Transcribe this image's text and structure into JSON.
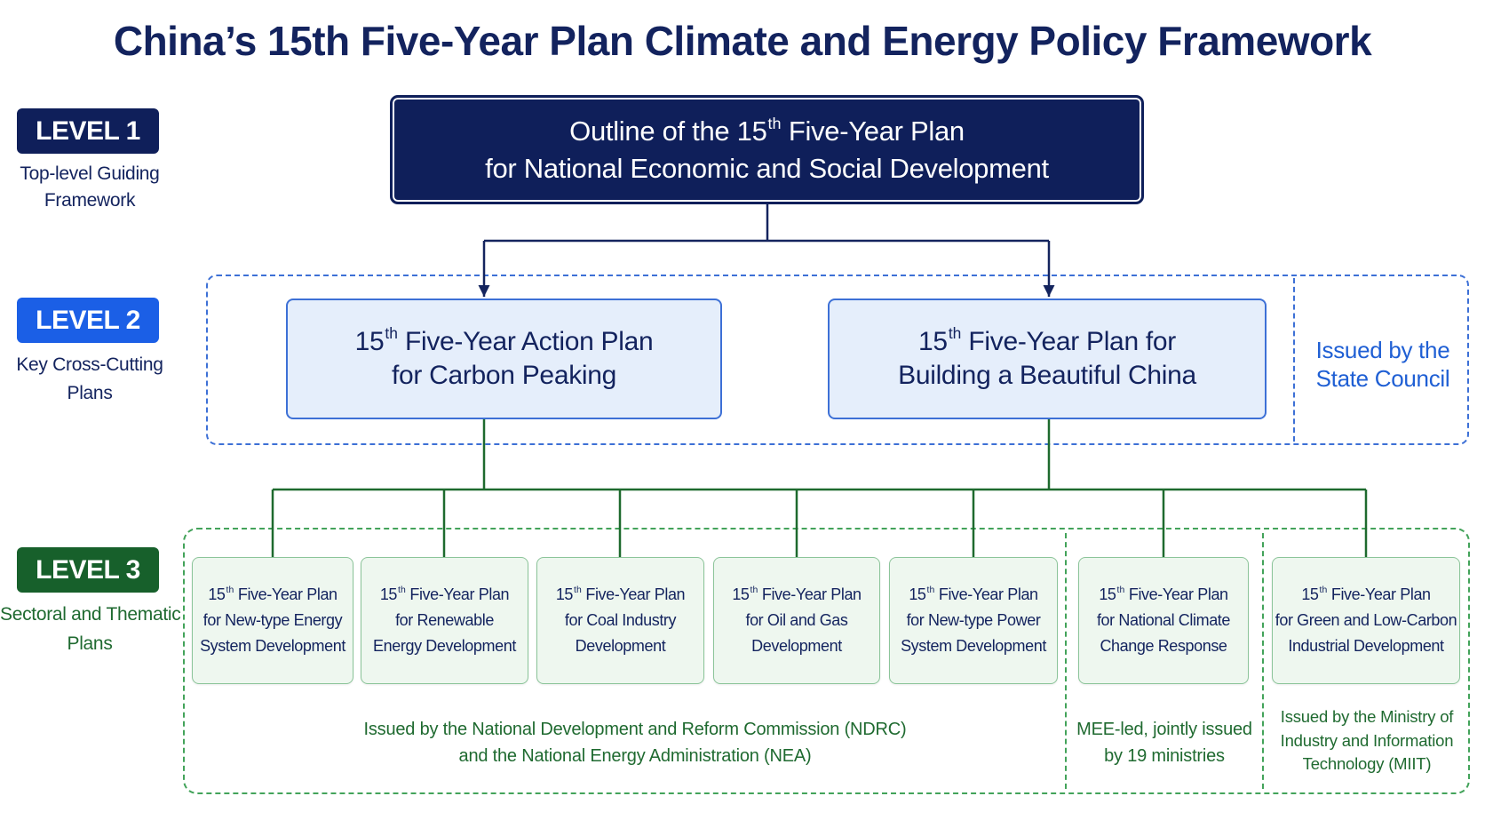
{
  "title": "China’s 15th Five-Year Plan Climate and Energy Policy Framework",
  "levels": [
    {
      "badge": "LEVEL 1",
      "description": [
        "Top-level Guiding",
        "Framework"
      ]
    },
    {
      "badge": "LEVEL 2",
      "description": [
        "Key Cross-Cutting",
        "Plans"
      ]
    },
    {
      "badge": "LEVEL 3",
      "description": [
        "Sectoral and Thematic",
        "Plans"
      ]
    }
  ],
  "level_1": {
    "plan": [
      "Outline of the 15th Five-Year Plan",
      "for National Economic and Social Development"
    ]
  },
  "level_2": {
    "plans": [
      [
        "15th Five-Year Action Plan",
        "for Carbon Peaking"
      ],
      [
        "15th Five-Year Plan for",
        "Building a Beautiful China"
      ]
    ],
    "issuer": [
      "Issued by the",
      "State Council"
    ]
  },
  "level_3": {
    "plans": [
      [
        "15th Five-Year Plan",
        "for New-type Energy",
        "System Development"
      ],
      [
        "15th Five-Year Plan",
        "for Renewable",
        "Energy Development"
      ],
      [
        "15th Five-Year Plan",
        "for Coal Industry",
        "Development"
      ],
      [
        "15th Five-Year Plan",
        "for Oil and Gas",
        "Development"
      ],
      [
        "15th Five-Year Plan",
        "for New-type Power",
        "System Development"
      ],
      [
        "15th Five-Year Plan",
        "for National Climate",
        "Change Response"
      ],
      [
        "15th Five-Year Plan",
        "for Green and Low-Carbon",
        "Industrial Development"
      ]
    ],
    "issuers": [
      [
        "Issued by the National Development and Reform Commission (NDRC)",
        "and the National Energy Administration (NEA)"
      ],
      [
        "MEE-led, jointly issued",
        "by 19 ministries"
      ],
      [
        "Issued by the Ministry of",
        "Industry and Information",
        "Technology (MIIT)"
      ]
    ]
  },
  "colors": {
    "navy": "#13235e",
    "level1": "#0f1f5a",
    "level2": "#1b5fe6",
    "level3": "#17602b",
    "l2-border": "#3d70d6",
    "l2-fill": "#e5eefb",
    "l2-note": "#1f5fd4",
    "l3-border": "#43a35a",
    "l3-box-border": "#8cc59a",
    "l3-fill": "#eef7ef",
    "green-text": "#1f6a30",
    "connector-navy": "#14245e",
    "connector-green": "#1e6a2e"
  }
}
